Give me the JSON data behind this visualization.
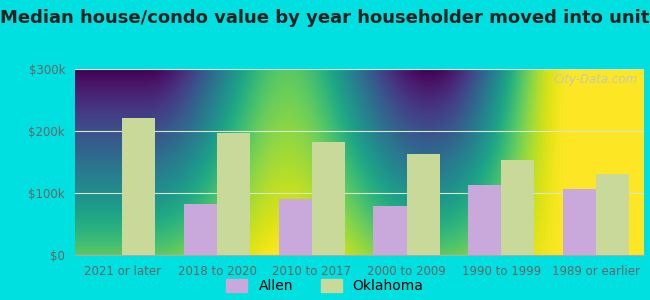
{
  "title": "Median house/condo value by year householder moved into unit",
  "categories": [
    "2021 or later",
    "2018 to 2020",
    "2010 to 2017",
    "2000 to 2009",
    "1990 to 1999",
    "1989 or earlier"
  ],
  "allen_values": [
    0,
    83000,
    91000,
    79000,
    113000,
    107000
  ],
  "oklahoma_values": [
    221000,
    197000,
    183000,
    163000,
    153000,
    131000
  ],
  "allen_color": "#c9a8dc",
  "oklahoma_color": "#c8d99a",
  "bar_width": 0.35,
  "ylim": [
    0,
    300000
  ],
  "yticks": [
    0,
    100000,
    200000,
    300000
  ],
  "ytick_labels": [
    "$0",
    "$100k",
    "$200k",
    "$300k"
  ],
  "bg_top_color": "#d8f5d8",
  "bg_bottom_color": "#f0faf0",
  "outer_background": "#00e0e0",
  "grid_color": "#d8e8c8",
  "title_fontsize": 13,
  "tick_fontsize": 8.5,
  "legend_fontsize": 10,
  "watermark_text": "City-Data.com",
  "watermark_color": "#b8c8c8",
  "legend_labels": [
    "Allen",
    "Oklahoma"
  ]
}
